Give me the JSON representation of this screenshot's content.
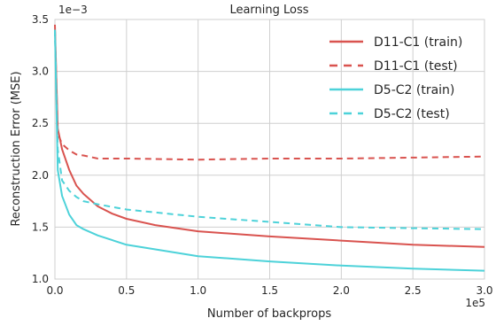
{
  "chart_data": {
    "type": "line",
    "title": "Learning Loss",
    "xlabel": "Number of backprops",
    "ylabel": "Reconstruction Error (MSE)",
    "x_multiplier": "1e5",
    "y_multiplier": "1e−3",
    "xlim": [
      0.0,
      3.0
    ],
    "ylim": [
      1.0,
      3.5
    ],
    "x_ticks": [
      "0.0",
      "0.5",
      "1.0",
      "1.5",
      "2.0",
      "2.5",
      "3.0"
    ],
    "y_ticks": [
      "1.0",
      "1.5",
      "2.0",
      "2.5",
      "3.0",
      "3.5"
    ],
    "grid": true,
    "legend_position": "top-right",
    "series": [
      {
        "name": "D11-C1 (train)",
        "color": "#d9534f",
        "style": "solid",
        "x": [
          0.0,
          0.02,
          0.05,
          0.1,
          0.15,
          0.2,
          0.3,
          0.4,
          0.5,
          0.7,
          1.0,
          1.5,
          2.0,
          2.5,
          3.0
        ],
        "y": [
          3.45,
          2.45,
          2.25,
          2.05,
          1.9,
          1.82,
          1.7,
          1.63,
          1.58,
          1.52,
          1.46,
          1.41,
          1.37,
          1.33,
          1.31
        ]
      },
      {
        "name": "D11-C1 (test)",
        "color": "#d9534f",
        "style": "dashed",
        "x": [
          0.0,
          0.02,
          0.05,
          0.1,
          0.15,
          0.2,
          0.3,
          0.5,
          1.0,
          1.5,
          2.0,
          2.5,
          3.0
        ],
        "y": [
          3.4,
          2.4,
          2.3,
          2.24,
          2.2,
          2.19,
          2.16,
          2.16,
          2.15,
          2.16,
          2.16,
          2.17,
          2.18
        ]
      },
      {
        "name": "D5-C2 (train)",
        "color": "#4dd2d9",
        "style": "solid",
        "x": [
          0.0,
          0.02,
          0.05,
          0.1,
          0.15,
          0.2,
          0.3,
          0.5,
          1.0,
          1.5,
          2.0,
          2.5,
          3.0
        ],
        "y": [
          3.4,
          2.05,
          1.8,
          1.62,
          1.52,
          1.48,
          1.42,
          1.33,
          1.22,
          1.17,
          1.13,
          1.1,
          1.08
        ]
      },
      {
        "name": "D5-C2 (test)",
        "color": "#4dd2d9",
        "style": "dashed",
        "x": [
          0.0,
          0.02,
          0.05,
          0.1,
          0.15,
          0.2,
          0.3,
          0.5,
          1.0,
          1.5,
          2.0,
          2.5,
          3.0
        ],
        "y": [
          3.4,
          2.25,
          1.95,
          1.85,
          1.79,
          1.75,
          1.72,
          1.67,
          1.6,
          1.55,
          1.5,
          1.49,
          1.48
        ]
      }
    ]
  }
}
